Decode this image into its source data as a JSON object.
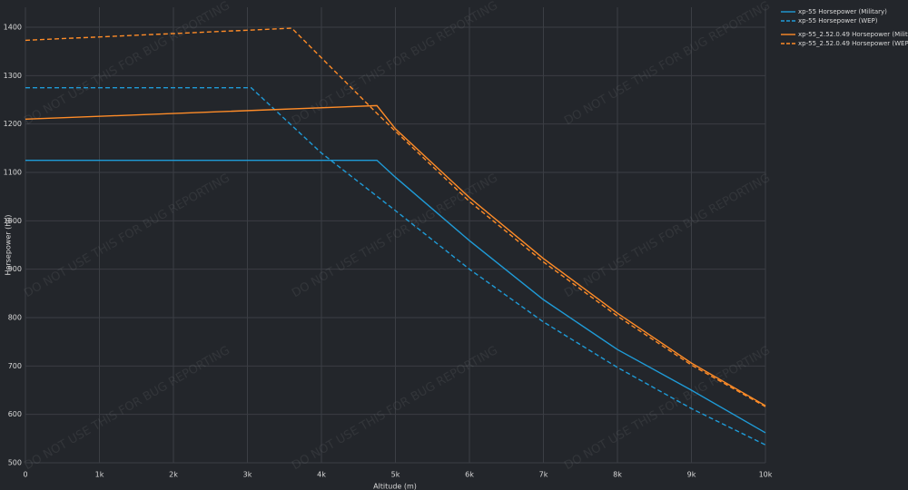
{
  "chart_data": {
    "type": "line",
    "x_label": "Altitude (m)",
    "y_label": "Horsepower (hp)",
    "watermark": "DO NOT USE THIS FOR BUG REPORTING",
    "xlim": [
      0,
      10000
    ],
    "ylim": [
      500,
      1400
    ],
    "xticks": [
      0,
      {
        "value": 1000,
        "label": "1k"
      },
      {
        "value": 2000,
        "label": "2k"
      },
      {
        "value": 3000,
        "label": "3k"
      },
      {
        "value": 4000,
        "label": "4k"
      },
      {
        "value": 5000,
        "label": "5k"
      },
      {
        "value": 6000,
        "label": "6k"
      },
      {
        "value": 7000,
        "label": "7k"
      },
      {
        "value": 8000,
        "label": "8k"
      },
      {
        "value": 9000,
        "label": "9k"
      },
      {
        "value": 10000,
        "label": "10k"
      }
    ],
    "yticks": [
      500,
      600,
      700,
      800,
      900,
      1000,
      1100,
      1200,
      1300,
      1400
    ],
    "grid": true,
    "series": [
      {
        "name": "xp-55 Horsepower (Military)",
        "color": "#1f9bd7",
        "dash": false,
        "x": [
          0,
          4750,
          5000,
          6000,
          7000,
          8000,
          9000,
          10000
        ],
        "values": [
          1125,
          1125,
          1090,
          959,
          837,
          734,
          650,
          562
        ]
      },
      {
        "name": "xp-55 Horsepower (WEP)",
        "color": "#1f9bd7",
        "dash": true,
        "x": [
          0,
          3050,
          4000,
          5000,
          6000,
          7000,
          8000,
          9000,
          10000
        ],
        "values": [
          1275,
          1275,
          1140,
          1021,
          900,
          791,
          697,
          612,
          537
        ]
      },
      {
        "name": "xp-55_2.52.0.49 Horsepower (Military)",
        "color": "#ff8c28",
        "dash": false,
        "x": [
          0,
          4750,
          5000,
          6000,
          7000,
          8000,
          9000,
          10000
        ],
        "values": [
          1210,
          1238,
          1190,
          1048,
          922,
          809,
          706,
          618
        ]
      },
      {
        "name": "xp-55_2.52.0.49 Horsepower (WEP)",
        "color": "#ff8c28",
        "dash": true,
        "x": [
          0,
          3600,
          4750,
          5000,
          6000,
          7000,
          8000,
          9000,
          10000
        ],
        "values": [
          1373,
          1398,
          1222,
          1185,
          1040,
          915,
          803,
          702,
          616
        ]
      }
    ]
  }
}
